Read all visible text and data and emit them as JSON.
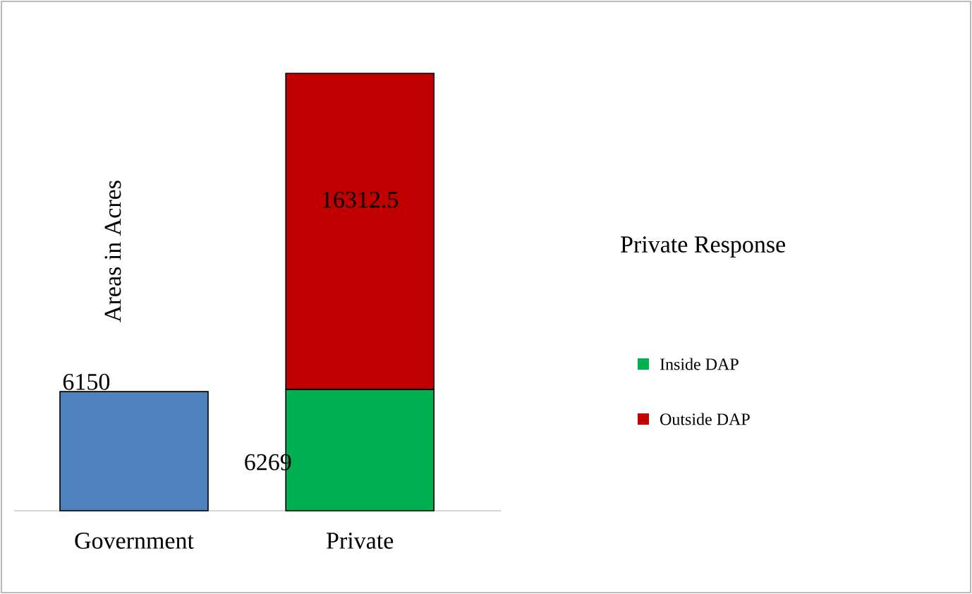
{
  "chart_data": {
    "type": "bar",
    "stacked": true,
    "data_labels": true,
    "ylabel": "Areas in Acres",
    "legend_title": "Private Response",
    "legend": "right",
    "categories": [
      "Government",
      "Private"
    ],
    "series": [
      {
        "name": "Inside DAP",
        "colors": [
          "#4f81bd",
          "#00b050"
        ],
        "values": [
          6150,
          6269
        ]
      },
      {
        "name": "Outside DAP",
        "color": "#c00000",
        "values": [
          null,
          16312.5
        ]
      }
    ]
  }
}
